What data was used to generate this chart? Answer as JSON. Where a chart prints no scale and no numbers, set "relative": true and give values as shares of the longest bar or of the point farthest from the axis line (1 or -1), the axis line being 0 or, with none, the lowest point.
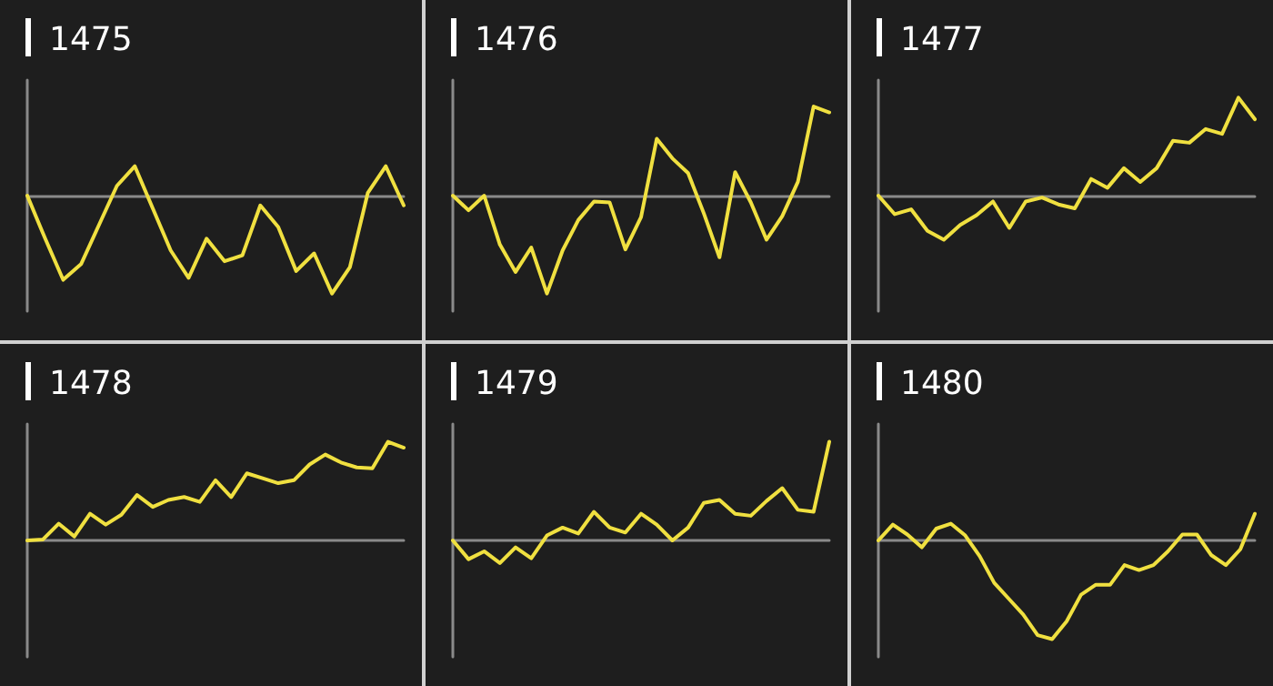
{
  "chart_data": [
    {
      "type": "line",
      "title": "1475",
      "relative": true,
      "marker": "none",
      "color": "#f0e040",
      "categories": [
        null,
        null,
        null,
        null,
        null,
        null,
        null,
        null,
        null,
        null,
        null,
        null,
        null,
        null,
        null,
        null,
        null,
        null,
        null,
        null,
        null,
        null
      ],
      "values": [
        0,
        -0.44,
        -0.86,
        -0.7,
        -0.3,
        0.1,
        0.3,
        -0.13,
        -0.56,
        -0.84,
        -0.44,
        -0.67,
        -0.61,
        -0.1,
        -0.32,
        -0.77,
        -0.59,
        -1,
        -0.73,
        0.03,
        0.3,
        -0.1
      ]
    },
    {
      "type": "line",
      "title": "1476",
      "relative": true,
      "marker": "none",
      "color": "#f0e040",
      "categories": [
        null,
        null,
        null,
        null,
        null,
        null,
        null,
        null,
        null,
        null,
        null,
        null,
        null,
        null,
        null,
        null,
        null,
        null,
        null,
        null,
        null,
        null,
        null,
        null,
        null
      ],
      "values": [
        0,
        -0.15,
        0,
        -0.5,
        -0.78,
        -0.53,
        -1,
        -0.56,
        -0.25,
        -0.06,
        -0.07,
        -0.55,
        -0.22,
        0.58,
        0.38,
        0.23,
        -0.18,
        -0.63,
        0.24,
        -0.07,
        -0.45,
        -0.21,
        0.14,
        0.91,
        0.85
      ]
    },
    {
      "type": "line",
      "title": "1477",
      "relative": true,
      "marker": "none",
      "color": "#f0e040",
      "categories": [
        null,
        null,
        null,
        null,
        null,
        null,
        null,
        null,
        null,
        null,
        null,
        null,
        null,
        null,
        null,
        null,
        null,
        null,
        null,
        null,
        null,
        null,
        null,
        null
      ],
      "values": [
        0,
        -0.19,
        -0.14,
        -0.36,
        -0.45,
        -0.3,
        -0.2,
        -0.06,
        -0.33,
        -0.06,
        -0.02,
        -0.09,
        -0.13,
        0.17,
        0.08,
        0.28,
        0.14,
        0.28,
        0.56,
        0.54,
        0.68,
        0.63,
        1,
        0.78
      ]
    },
    {
      "type": "line",
      "title": "1478",
      "relative": true,
      "marker": "none",
      "color": "#f0e040",
      "categories": [
        null,
        null,
        null,
        null,
        null,
        null,
        null,
        null,
        null,
        null,
        null,
        null,
        null,
        null,
        null,
        null,
        null,
        null,
        null,
        null,
        null,
        null,
        null,
        null,
        null
      ],
      "values": [
        0,
        0.01,
        0.17,
        0.04,
        0.27,
        0.16,
        0.26,
        0.46,
        0.34,
        0.41,
        0.44,
        0.39,
        0.61,
        0.44,
        0.68,
        0.63,
        0.58,
        0.61,
        0.77,
        0.87,
        0.79,
        0.74,
        0.73,
        1,
        0.94
      ]
    },
    {
      "type": "line",
      "title": "1479",
      "relative": true,
      "marker": "none",
      "color": "#f0e040",
      "categories": [
        null,
        null,
        null,
        null,
        null,
        null,
        null,
        null,
        null,
        null,
        null,
        null,
        null,
        null,
        null,
        null,
        null,
        null,
        null,
        null,
        null,
        null,
        null,
        null,
        null
      ],
      "values": [
        0,
        -0.19,
        -0.11,
        -0.23,
        -0.07,
        -0.18,
        0.05,
        0.13,
        0.07,
        0.29,
        0.13,
        0.08,
        0.27,
        0.16,
        0,
        0.13,
        0.38,
        0.41,
        0.27,
        0.25,
        0.4,
        0.53,
        0.31,
        0.29,
        1
      ]
    },
    {
      "type": "line",
      "title": "1480",
      "relative": true,
      "marker": "none",
      "color": "#f0e040",
      "categories": [
        null,
        null,
        null,
        null,
        null,
        null,
        null,
        null,
        null,
        null,
        null,
        null,
        null,
        null,
        null,
        null,
        null,
        null,
        null,
        null,
        null,
        null,
        null,
        null,
        null,
        null,
        null
      ],
      "values": [
        0,
        0.16,
        0.06,
        -0.07,
        0.12,
        0.17,
        0.05,
        -0.16,
        -0.43,
        -0.59,
        -0.75,
        -0.96,
        -1,
        -0.82,
        -0.55,
        -0.45,
        -0.45,
        -0.25,
        -0.3,
        -0.25,
        -0.11,
        0.06,
        0.06,
        -0.15,
        -0.25,
        -0.09,
        0.27
      ]
    }
  ]
}
